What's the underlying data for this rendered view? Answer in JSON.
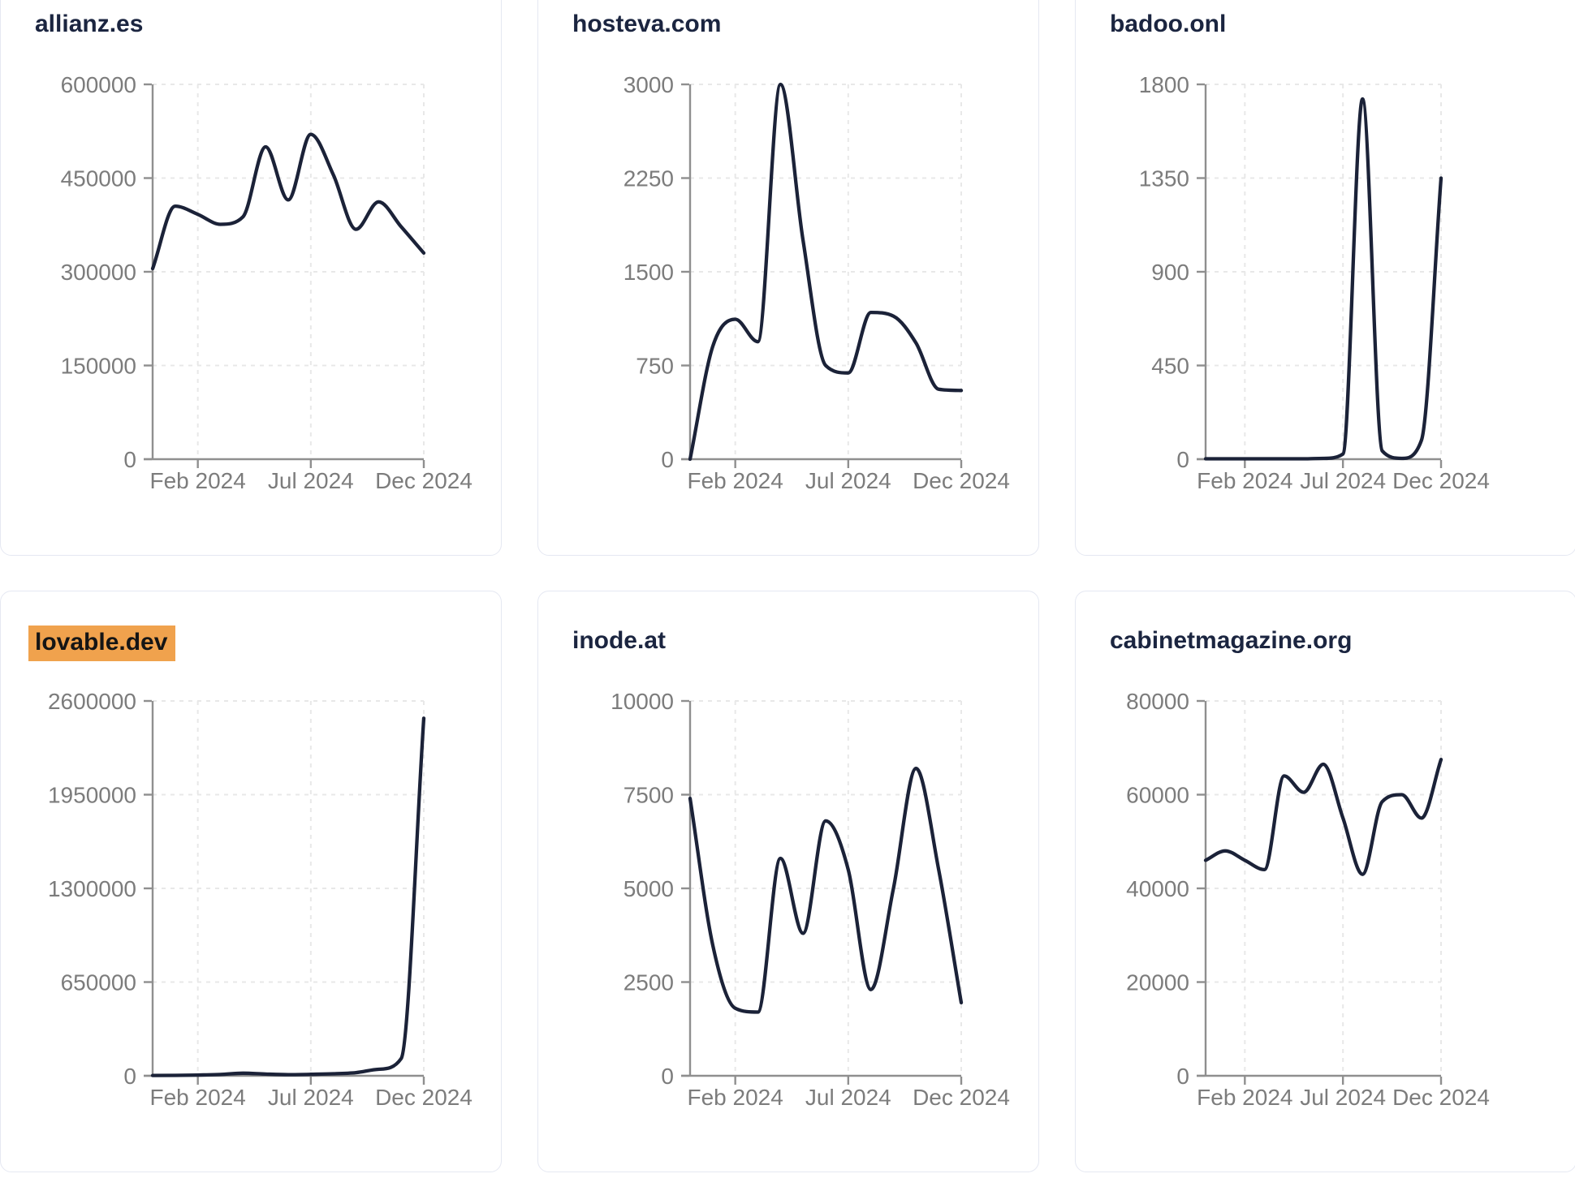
{
  "page": {
    "kind": "website-traffic-dashboard",
    "x_axis_tick_labels": [
      "Feb 2024",
      "Jul 2024",
      "Dec 2024"
    ]
  },
  "colors": {
    "line": "#1b2238",
    "title": "#1b2540",
    "tick_label": "#7c7c7c",
    "axis": "#8f8f8f",
    "grid": "#e8e8e8",
    "highlight_bg": "#f0a24d",
    "highlight_text": "#151515",
    "card_border": "#e5e8f2",
    "card_bg": "#ffffff",
    "page_bg": "#ffffff"
  },
  "chart_data": [
    {
      "type": "line",
      "title": "allianz.es",
      "highlighted": false,
      "months": [
        "Dec 2023",
        "Jan 2024",
        "Feb 2024",
        "Mar 2024",
        "Apr 2024",
        "May 2024",
        "Jun 2024",
        "Jul 2024",
        "Aug 2024",
        "Sep 2024",
        "Oct 2024",
        "Nov 2024",
        "Dec 2024"
      ],
      "values": [
        305000,
        405000,
        392000,
        376000,
        388000,
        500000,
        415000,
        520000,
        455000,
        368000,
        412000,
        372000,
        330000
      ],
      "ylim": [
        0,
        600000
      ],
      "y_ticks": [
        0,
        150000,
        300000,
        450000,
        600000
      ],
      "y_tick_labels": [
        "0",
        "150000",
        "300000",
        "450000",
        "600000"
      ],
      "x_tick_labels": [
        "Feb 2024",
        "Jul 2024",
        "Dec 2024"
      ],
      "x_tick_indices": [
        2,
        7,
        12
      ],
      "grid": "dashed",
      "legend": "none"
    },
    {
      "type": "line",
      "title": "hosteva.com",
      "highlighted": false,
      "months": [
        "Dec 2023",
        "Jan 2024",
        "Feb 2024",
        "Mar 2024",
        "Apr 2024",
        "May 2024",
        "Jun 2024",
        "Jul 2024",
        "Aug 2024",
        "Sep 2024",
        "Oct 2024",
        "Nov 2024",
        "Dec 2024"
      ],
      "values": [
        0,
        900,
        1120,
        940,
        3000,
        1750,
        750,
        690,
        1175,
        1145,
        930,
        560,
        550
      ],
      "ylim": [
        0,
        3000
      ],
      "y_ticks": [
        0,
        750,
        1500,
        2250,
        3000
      ],
      "y_tick_labels": [
        "0",
        "750",
        "1500",
        "2250",
        "3000"
      ],
      "x_tick_labels": [
        "Feb 2024",
        "Jul 2024",
        "Dec 2024"
      ],
      "x_tick_indices": [
        2,
        7,
        12
      ],
      "grid": "dashed",
      "legend": "none"
    },
    {
      "type": "line",
      "title": "badoo.onl",
      "highlighted": false,
      "months": [
        "Dec 2023",
        "Jan 2024",
        "Feb 2024",
        "Mar 2024",
        "Apr 2024",
        "May 2024",
        "Jun 2024",
        "Jul 2024",
        "Aug 2024",
        "Sep 2024",
        "Oct 2024",
        "Nov 2024",
        "Dec 2024"
      ],
      "values": [
        2,
        2,
        2,
        2,
        2,
        2,
        4,
        25,
        1730,
        40,
        4,
        90,
        1350
      ],
      "ylim": [
        0,
        1800
      ],
      "y_ticks": [
        0,
        450,
        900,
        1350,
        1800
      ],
      "y_tick_labels": [
        "0",
        "450",
        "900",
        "1350",
        "1800"
      ],
      "x_tick_labels": [
        "Feb 2024",
        "Jul 2024",
        "Dec 2024"
      ],
      "x_tick_indices": [
        2,
        7,
        12
      ],
      "grid": "dashed",
      "legend": "none"
    },
    {
      "type": "line",
      "title": "lovable.dev",
      "highlighted": true,
      "months": [
        "Dec 2023",
        "Jan 2024",
        "Feb 2024",
        "Mar 2024",
        "Apr 2024",
        "May 2024",
        "Jun 2024",
        "Jul 2024",
        "Aug 2024",
        "Sep 2024",
        "Oct 2024",
        "Nov 2024",
        "Dec 2024"
      ],
      "values": [
        2000,
        3000,
        5000,
        9000,
        18000,
        12000,
        8000,
        10000,
        14000,
        22000,
        45000,
        120000,
        2480000
      ],
      "ylim": [
        0,
        2600000
      ],
      "y_ticks": [
        0,
        650000,
        1300000,
        1950000,
        2600000
      ],
      "y_tick_labels": [
        "0",
        "650000",
        "1300000",
        "1950000",
        "2600000"
      ],
      "x_tick_labels": [
        "Feb 2024",
        "Jul 2024",
        "Dec 2024"
      ],
      "x_tick_indices": [
        2,
        7,
        12
      ],
      "grid": "dashed",
      "legend": "none"
    },
    {
      "type": "line",
      "title": "inode.at",
      "highlighted": false,
      "months": [
        "Dec 2023",
        "Jan 2024",
        "Feb 2024",
        "Mar 2024",
        "Apr 2024",
        "May 2024",
        "Jun 2024",
        "Jul 2024",
        "Aug 2024",
        "Sep 2024",
        "Oct 2024",
        "Nov 2024",
        "Dec 2024"
      ],
      "values": [
        7400,
        3500,
        1800,
        1700,
        5800,
        3800,
        6800,
        5500,
        2300,
        5000,
        8200,
        5500,
        1950
      ],
      "ylim": [
        0,
        10000
      ],
      "y_ticks": [
        0,
        2500,
        5000,
        7500,
        10000
      ],
      "y_tick_labels": [
        "0",
        "2500",
        "5000",
        "7500",
        "10000"
      ],
      "x_tick_labels": [
        "Feb 2024",
        "Jul 2024",
        "Dec 2024"
      ],
      "x_tick_indices": [
        2,
        7,
        12
      ],
      "grid": "dashed",
      "legend": "none"
    },
    {
      "type": "line",
      "title": "cabinetmagazine.org",
      "highlighted": false,
      "months": [
        "Dec 2023",
        "Jan 2024",
        "Feb 2024",
        "Mar 2024",
        "Apr 2024",
        "May 2024",
        "Jun 2024",
        "Jul 2024",
        "Aug 2024",
        "Sep 2024",
        "Oct 2024",
        "Nov 2024",
        "Dec 2024"
      ],
      "values": [
        46000,
        48000,
        46000,
        44000,
        64000,
        60500,
        66500,
        55000,
        43000,
        58500,
        60000,
        55000,
        67500
      ],
      "ylim": [
        0,
        80000
      ],
      "y_ticks": [
        0,
        20000,
        40000,
        60000,
        80000
      ],
      "y_tick_labels": [
        "0",
        "20000",
        "40000",
        "60000",
        "80000"
      ],
      "x_tick_labels": [
        "Feb 2024",
        "Jul 2024",
        "Dec 2024"
      ],
      "x_tick_indices": [
        2,
        7,
        12
      ],
      "grid": "dashed",
      "legend": "none"
    }
  ]
}
